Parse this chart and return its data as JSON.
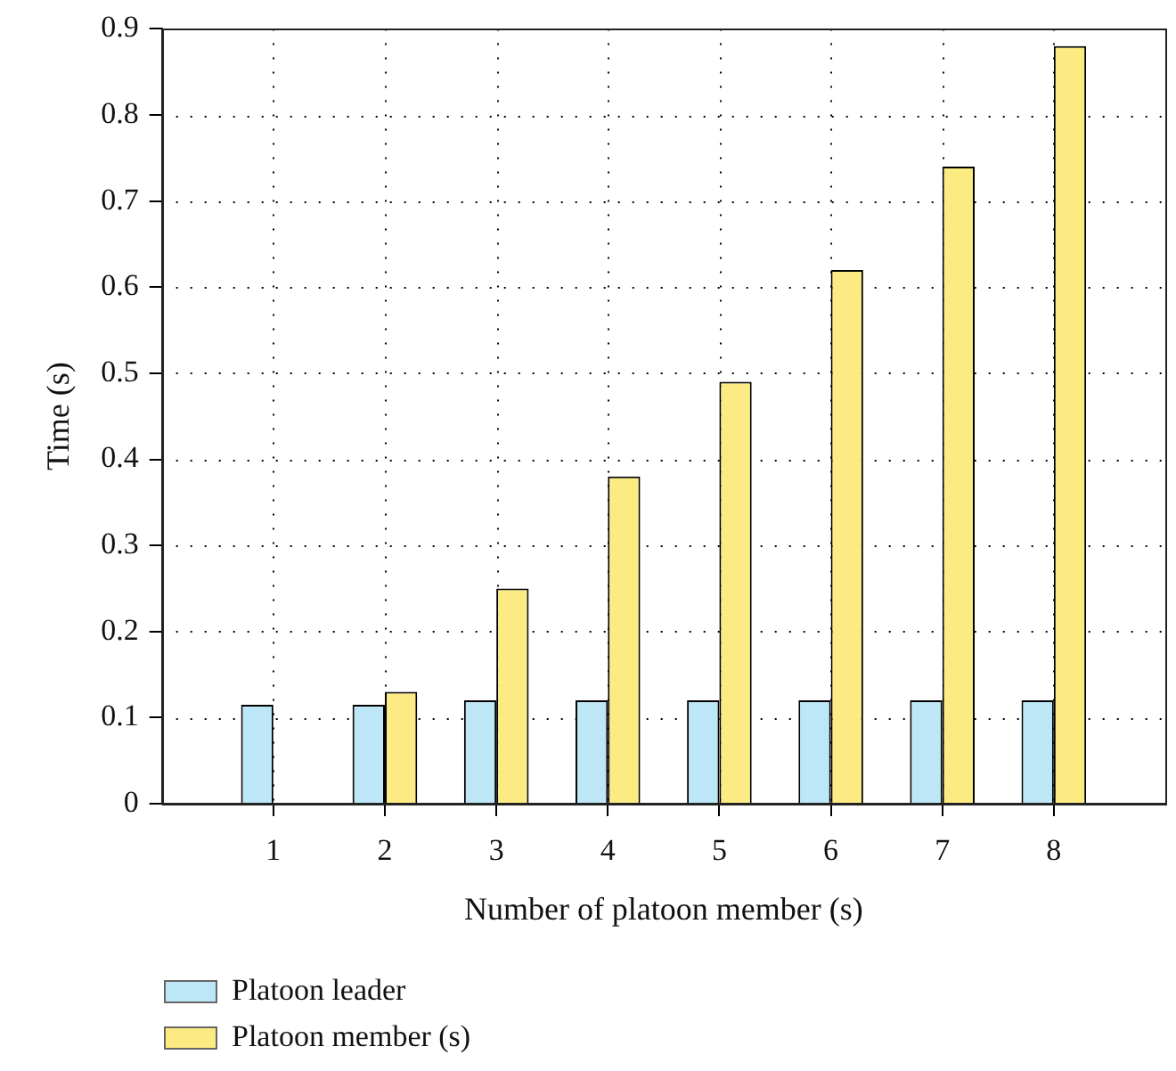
{
  "chart_data": {
    "type": "bar",
    "xlabel": "Number of platoon member (s)",
    "ylabel": "Time (s)",
    "x": [
      1,
      2,
      3,
      4,
      5,
      6,
      7,
      8
    ],
    "xlim": [
      0,
      9
    ],
    "xticks": [
      1,
      2,
      3,
      4,
      5,
      6,
      7,
      8
    ],
    "ylim": [
      0,
      0.9
    ],
    "yticks": [
      0,
      0.1,
      0.2,
      0.3,
      0.4,
      0.5,
      0.6,
      0.7,
      0.8,
      0.9
    ],
    "series": [
      {
        "name": "Platoon leader",
        "color": "#bde6f6",
        "values": [
          0.115,
          0.115,
          0.12,
          0.12,
          0.12,
          0.12,
          0.12,
          0.12
        ]
      },
      {
        "name": "Platoon member (s)",
        "color": "#fbeb82",
        "values": [
          null,
          0.13,
          0.25,
          0.38,
          0.49,
          0.62,
          0.74,
          0.88
        ]
      }
    ],
    "grid": true,
    "legend": "bottom left"
  }
}
